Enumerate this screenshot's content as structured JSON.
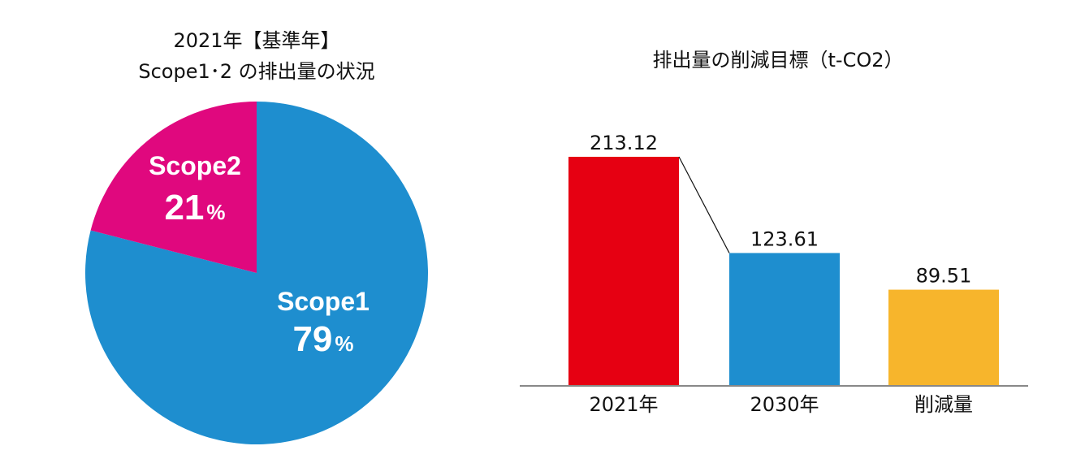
{
  "chart_data": [
    {
      "type": "pie",
      "title_lines": [
        "2021年【基準年】",
        "Scope1･2 の排出量の状況"
      ],
      "slices": [
        {
          "name": "Scope1",
          "value": 79,
          "label": "79",
          "unit": "%",
          "color": "#1E8ECF"
        },
        {
          "name": "Scope2",
          "value": 21,
          "label": "21",
          "unit": "%",
          "color": "#E0087E"
        }
      ]
    },
    {
      "type": "bar",
      "title": "排出量の削減目標（t-CO2）",
      "categories": [
        "2021年",
        "2030年",
        "削減量"
      ],
      "values": [
        213.12,
        123.61,
        89.51
      ],
      "value_labels": [
        "213.12",
        "123.61",
        "89.51"
      ],
      "colors": [
        "#E60012",
        "#1E8ECF",
        "#F7B52C"
      ],
      "ylim": [
        0,
        213.12
      ],
      "connector": true,
      "grid": false
    }
  ]
}
